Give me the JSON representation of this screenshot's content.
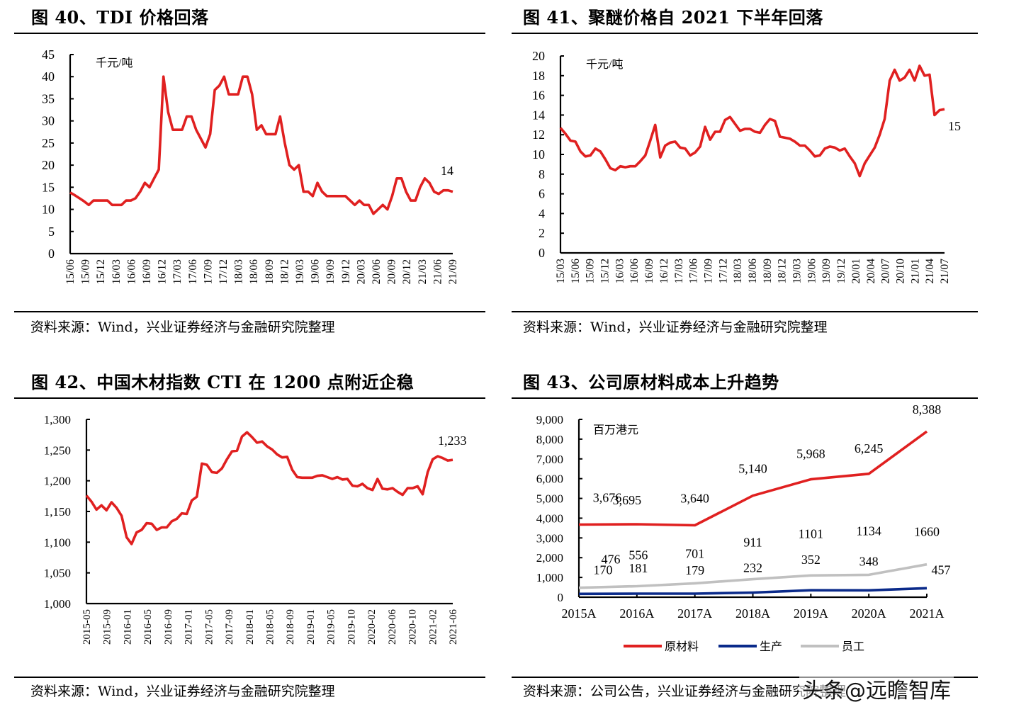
{
  "colors": {
    "red": "#e02020",
    "navy": "#0a2a8a",
    "gray": "#c0c0c0",
    "axis": "#000000"
  },
  "watermark": "头条@远瞻智库",
  "chart_data": [
    {
      "id": "fig40",
      "type": "line",
      "title": "图 40、TDI 价格回落",
      "unit_label": "千元/吨",
      "source": "资料来源：Wind，兴业证券经济与金融研究院整理",
      "ylim": [
        0,
        45
      ],
      "yticks": [
        "0",
        "5",
        "10",
        "15",
        "20",
        "25",
        "30",
        "35",
        "40",
        "45"
      ],
      "ytick_values": [
        0,
        5,
        10,
        15,
        20,
        25,
        30,
        35,
        40,
        45
      ],
      "xtick_labels": [
        "15/06",
        "15/09",
        "15/12",
        "16/03",
        "16/06",
        "16/09",
        "16/12",
        "17/03",
        "17/06",
        "17/09",
        "17/12",
        "18/03",
        "18/06",
        "18/09",
        "18/12",
        "19/03",
        "19/06",
        "19/09",
        "19/12",
        "20/03",
        "20/06",
        "20/09",
        "20/12",
        "21/03",
        "21/06",
        "21/09"
      ],
      "end_label": "14",
      "series": [
        {
          "name": "TDI",
          "color": "#e02020",
          "values": [
            13.8,
            13.2,
            12.5,
            11.8,
            11.0,
            12.0,
            12.0,
            12.0,
            12.0,
            11.0,
            11.0,
            11.0,
            12.0,
            12.0,
            12.5,
            14.0,
            16.0,
            15.0,
            17.0,
            19.0,
            40.0,
            32.0,
            28.0,
            28.0,
            28.0,
            31.0,
            31.0,
            28.0,
            26.0,
            24.0,
            27.0,
            37.0,
            38.0,
            40.0,
            36.0,
            36.0,
            36.0,
            40.0,
            40.0,
            36.0,
            28.0,
            29.0,
            27.0,
            27.0,
            27.0,
            31.0,
            25.0,
            20.0,
            19.0,
            20.0,
            14.0,
            14.0,
            13.0,
            16.0,
            14.0,
            13.0,
            13.0,
            13.0,
            13.0,
            13.0,
            12.0,
            11.0,
            12.0,
            11.0,
            11.0,
            9.0,
            10.0,
            11.0,
            10.0,
            13.0,
            17.0,
            17.0,
            14.0,
            12.0,
            12.0,
            15.0,
            17.0,
            16.0,
            14.0,
            13.5,
            14.3,
            14.3,
            14.0
          ]
        }
      ]
    },
    {
      "id": "fig41",
      "type": "line",
      "title": "图 41、聚醚价格自 2021 下半年回落",
      "unit_label": "千元/吨",
      "source": "资料来源：Wind，兴业证券经济与金融研究院整理",
      "ylim": [
        0,
        20
      ],
      "yticks": [
        "0",
        "2",
        "4",
        "6",
        "8",
        "10",
        "12",
        "14",
        "16",
        "18",
        "20"
      ],
      "ytick_values": [
        0,
        2,
        4,
        6,
        8,
        10,
        12,
        14,
        16,
        18,
        20
      ],
      "xtick_labels": [
        "15/03",
        "15/06",
        "15/09",
        "15/12",
        "16/03",
        "16/06",
        "16/09",
        "16/12",
        "17/03",
        "17/06",
        "17/09",
        "17/12",
        "18/03",
        "18/06",
        "18/09",
        "18/12",
        "19/03",
        "19/06",
        "19/09",
        "19/12",
        "20/01",
        "20/04",
        "20/07",
        "20/10",
        "21/01",
        "21/04",
        "21/07"
      ],
      "end_label": "15",
      "series": [
        {
          "name": "聚醚",
          "color": "#e02020",
          "values": [
            12.7,
            12.1,
            11.4,
            11.3,
            10.3,
            9.8,
            9.9,
            10.6,
            10.3,
            9.5,
            8.6,
            8.4,
            8.8,
            8.7,
            8.8,
            8.8,
            9.3,
            9.9,
            11.4,
            13.0,
            9.7,
            10.9,
            11.2,
            11.3,
            10.7,
            10.6,
            9.9,
            10.2,
            10.8,
            12.8,
            11.5,
            12.3,
            12.3,
            13.5,
            13.8,
            13.1,
            12.4,
            12.6,
            12.6,
            12.3,
            12.2,
            13.0,
            13.6,
            13.4,
            11.8,
            11.7,
            11.6,
            11.3,
            10.9,
            10.9,
            10.4,
            9.8,
            9.9,
            10.6,
            10.8,
            10.7,
            10.4,
            10.6,
            9.8,
            9.1,
            7.8,
            9.1,
            9.9,
            10.7,
            12.0,
            13.6,
            17.5,
            18.6,
            17.5,
            17.8,
            18.6,
            17.5,
            19.0,
            18.0,
            18.1,
            14.0,
            14.5,
            14.6
          ]
        }
      ]
    },
    {
      "id": "fig42",
      "type": "line",
      "title": "图 42、中国木材指数 CTI 在 1200 点附近企稳",
      "source": "资料来源：Wind，兴业证券经济与金融研究院整理",
      "ylim": [
        1000,
        1300
      ],
      "yticks": [
        "1,000",
        "1,050",
        "1,100",
        "1,150",
        "1,200",
        "1,250",
        "1,300"
      ],
      "ytick_values": [
        1000,
        1050,
        1100,
        1150,
        1200,
        1250,
        1300
      ],
      "xtick_labels": [
        "2015-05",
        "2015-09",
        "2016-01",
        "2016-05",
        "2016-09",
        "2017-01",
        "2017-05",
        "2017-09",
        "2018-01",
        "2018-05",
        "2018-09",
        "2019-01",
        "2019-05",
        "2019-10",
        "2020-02",
        "2020-06",
        "2020-10",
        "2021-02",
        "2021-06"
      ],
      "end_label": "1,233",
      "series": [
        {
          "name": "CTI",
          "color": "#e02020",
          "values": [
            1176,
            1166,
            1153,
            1160,
            1152,
            1165,
            1156,
            1143,
            1108,
            1097,
            1116,
            1120,
            1131,
            1130,
            1120,
            1124,
            1124,
            1134,
            1138,
            1147,
            1146,
            1168,
            1174,
            1228,
            1226,
            1214,
            1213,
            1220,
            1235,
            1248,
            1249,
            1272,
            1279,
            1271,
            1262,
            1264,
            1256,
            1251,
            1243,
            1238,
            1239,
            1218,
            1206,
            1205,
            1205,
            1205,
            1208,
            1209,
            1206,
            1203,
            1206,
            1202,
            1203,
            1192,
            1191,
            1195,
            1188,
            1185,
            1203,
            1187,
            1186,
            1188,
            1182,
            1177,
            1188,
            1188,
            1191,
            1178,
            1214,
            1235,
            1240,
            1237,
            1233,
            1234
          ]
        }
      ]
    },
    {
      "id": "fig43",
      "type": "line",
      "title": "图 43、公司原材料成本上升趋势",
      "unit_label": "百万港元",
      "source": "资料来源：公司公告，兴业证券经济与金融研究院整理",
      "ylim": [
        0,
        9000
      ],
      "yticks": [
        "0",
        "1,000",
        "2,000",
        "3,000",
        "4,000",
        "5,000",
        "6,000",
        "7,000",
        "8,000",
        "9,000"
      ],
      "ytick_values": [
        0,
        1000,
        2000,
        3000,
        4000,
        5000,
        6000,
        7000,
        8000,
        9000
      ],
      "categories": [
        "2015A",
        "2016A",
        "2017A",
        "2018A",
        "2019A",
        "2020A",
        "2021A"
      ],
      "legend_position": "bottom",
      "series": [
        {
          "name": "原材料",
          "color": "#e02020",
          "values": [
            3676,
            3695,
            3640,
            5140,
            5968,
            6245,
            8388
          ],
          "labels": [
            "3,676",
            "3,695",
            "3,640",
            "5,140",
            "5,968",
            "6,245",
            "8,388"
          ]
        },
        {
          "name": "生产",
          "color": "#0a2a8a",
          "values": [
            170,
            181,
            179,
            232,
            352,
            348,
            457
          ],
          "labels": [
            "170",
            "181",
            "179",
            "232",
            "352",
            "348",
            "457"
          ]
        },
        {
          "name": "员工",
          "color": "#c0c0c0",
          "values": [
            476,
            556,
            701,
            911,
            1101,
            1134,
            1660
          ],
          "labels": [
            "476",
            "556",
            "701",
            "911",
            "1101",
            "1134",
            "1660"
          ]
        }
      ]
    }
  ]
}
